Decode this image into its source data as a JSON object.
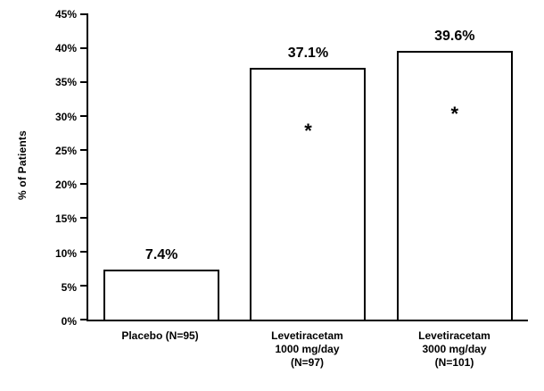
{
  "chart_data": {
    "type": "bar",
    "title": "",
    "xlabel": "",
    "ylabel": "% of Patients",
    "ylim": [
      0,
      45
    ],
    "ytick_step": 5,
    "ytick_labels": [
      "0%",
      "5%",
      "10%",
      "15%",
      "20%",
      "25%",
      "30%",
      "35%",
      "40%",
      "45%"
    ],
    "grid": false,
    "legend": false,
    "bar_fill": "#ffffff",
    "bar_border": "#000000",
    "text_color": "#000000",
    "categories": [
      "Placebo (N=95)",
      "Levetiracetam 1000 mg/day (N=97)",
      "Levetiracetam 3000 mg/day (N=101)"
    ],
    "values": [
      7.4,
      37.1,
      39.6
    ],
    "bars": [
      {
        "category_lines": [
          "Placebo (N=95)"
        ],
        "value": 7.4,
        "value_label": "7.4%",
        "annotation": ""
      },
      {
        "category_lines": [
          "Levetiracetam",
          "1000 mg/day",
          "(N=97)"
        ],
        "value": 37.1,
        "value_label": "37.1%",
        "annotation": "*"
      },
      {
        "category_lines": [
          "Levetiracetam",
          "3000 mg/day",
          "(N=101)"
        ],
        "value": 39.6,
        "value_label": "39.6%",
        "annotation": "*"
      }
    ]
  }
}
